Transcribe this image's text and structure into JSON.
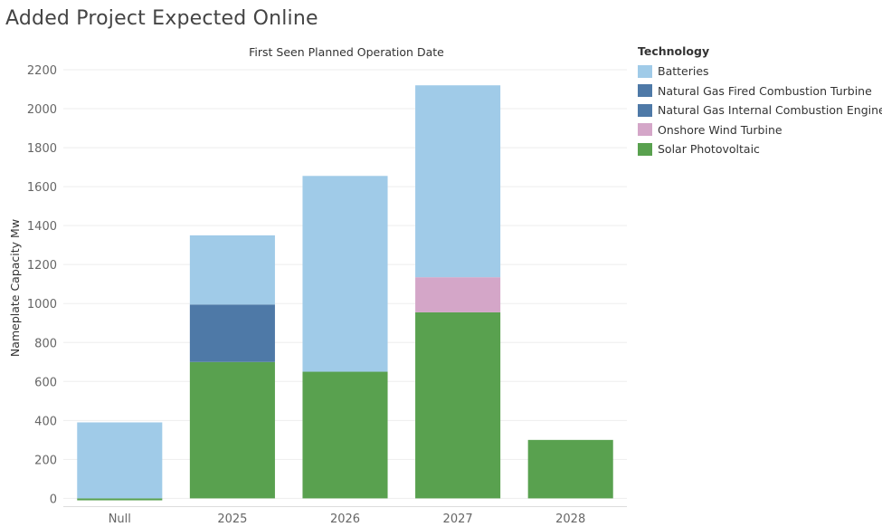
{
  "title": "Added Project Expected Online",
  "colors": {
    "Batteries": "#a0cbe8",
    "Natural Gas Fired Combustion Turbine": "#4e79a7",
    "Natural Gas Internal Combustion Engine": "#4e79a7",
    "Onshore Wind Turbine": "#d4a6c8",
    "Solar Photovoltaic": "#59a14f",
    "grid": "#eeeeee",
    "axis_text": "#666666"
  },
  "legend": {
    "title": "Technology",
    "items": [
      {
        "label": "Batteries",
        "color": "#a0cbe8"
      },
      {
        "label": "Natural Gas Fired Combustion Turbine",
        "color": "#4e79a7"
      },
      {
        "label": "Natural Gas Internal Combustion Engine",
        "color": "#4e79a7"
      },
      {
        "label": "Onshore Wind Turbine",
        "color": "#d4a6c8"
      },
      {
        "label": "Solar Photovoltaic",
        "color": "#59a14f"
      }
    ]
  },
  "chart_data": {
    "type": "bar",
    "stacked": true,
    "title": "First Seen Planned Operation Date",
    "xlabel": "",
    "ylabel": "Nameplate Capacity Mw",
    "categories": [
      "Null",
      "2025",
      "2026",
      "2027",
      "2028"
    ],
    "ylim": [
      -40,
      2200
    ],
    "yticks": [
      0,
      200,
      400,
      600,
      800,
      1000,
      1200,
      1400,
      1600,
      1800,
      2000,
      2200
    ],
    "grid": true,
    "legend_position": "right",
    "series": [
      {
        "name": "Solar Photovoltaic",
        "values": [
          -10,
          700,
          650,
          955,
          300
        ]
      },
      {
        "name": "Onshore Wind Turbine",
        "values": [
          0,
          0,
          0,
          180,
          0
        ]
      },
      {
        "name": "Natural Gas Internal Combustion Engine",
        "values": [
          0,
          0,
          0,
          0,
          0
        ]
      },
      {
        "name": "Natural Gas Fired Combustion Turbine",
        "values": [
          0,
          295,
          0,
          0,
          0
        ]
      },
      {
        "name": "Batteries",
        "values": [
          390,
          355,
          1005,
          985,
          0
        ]
      }
    ]
  }
}
